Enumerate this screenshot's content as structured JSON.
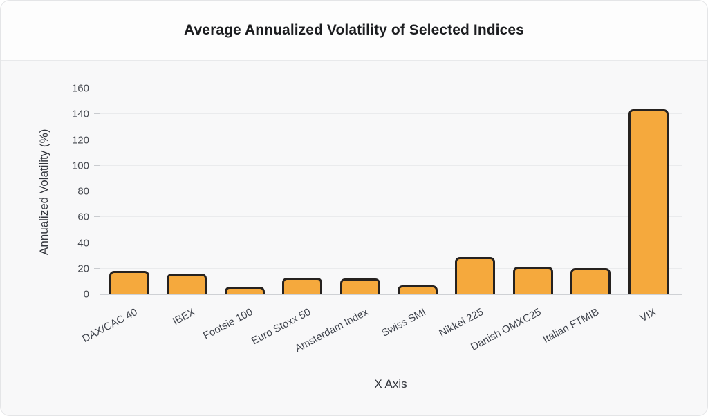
{
  "header": {
    "title": "Average Annualized Volatility of Selected Indices"
  },
  "chart_data": {
    "type": "bar",
    "title": "Average Annualized Volatility of Selected Indices",
    "xlabel": "X Axis",
    "ylabel": "Annualized Volatility (%)",
    "categories": [
      "DAX/CAC 40",
      "IBEX",
      "Footsie 100",
      "Euro Stoxx 50",
      "Amsterdam Index",
      "Swiss SMI",
      "Nikkei 225",
      "Danish OMXC25",
      "Italian FTMIB",
      "VIX"
    ],
    "values": [
      18,
      16,
      6,
      13,
      12.5,
      7,
      29,
      21.5,
      20.5,
      144
    ],
    "ylim": [
      0,
      160
    ],
    "yticks": [
      0,
      20,
      40,
      60,
      80,
      100,
      120,
      140,
      160
    ],
    "grid": true,
    "legend": false,
    "colors": {
      "bar_fill": "#f5a93d",
      "bar_border": "#262220",
      "plot_background": "#f8f8f9",
      "card_background": "#fdfdfd",
      "gridline": "#eaebed"
    }
  }
}
